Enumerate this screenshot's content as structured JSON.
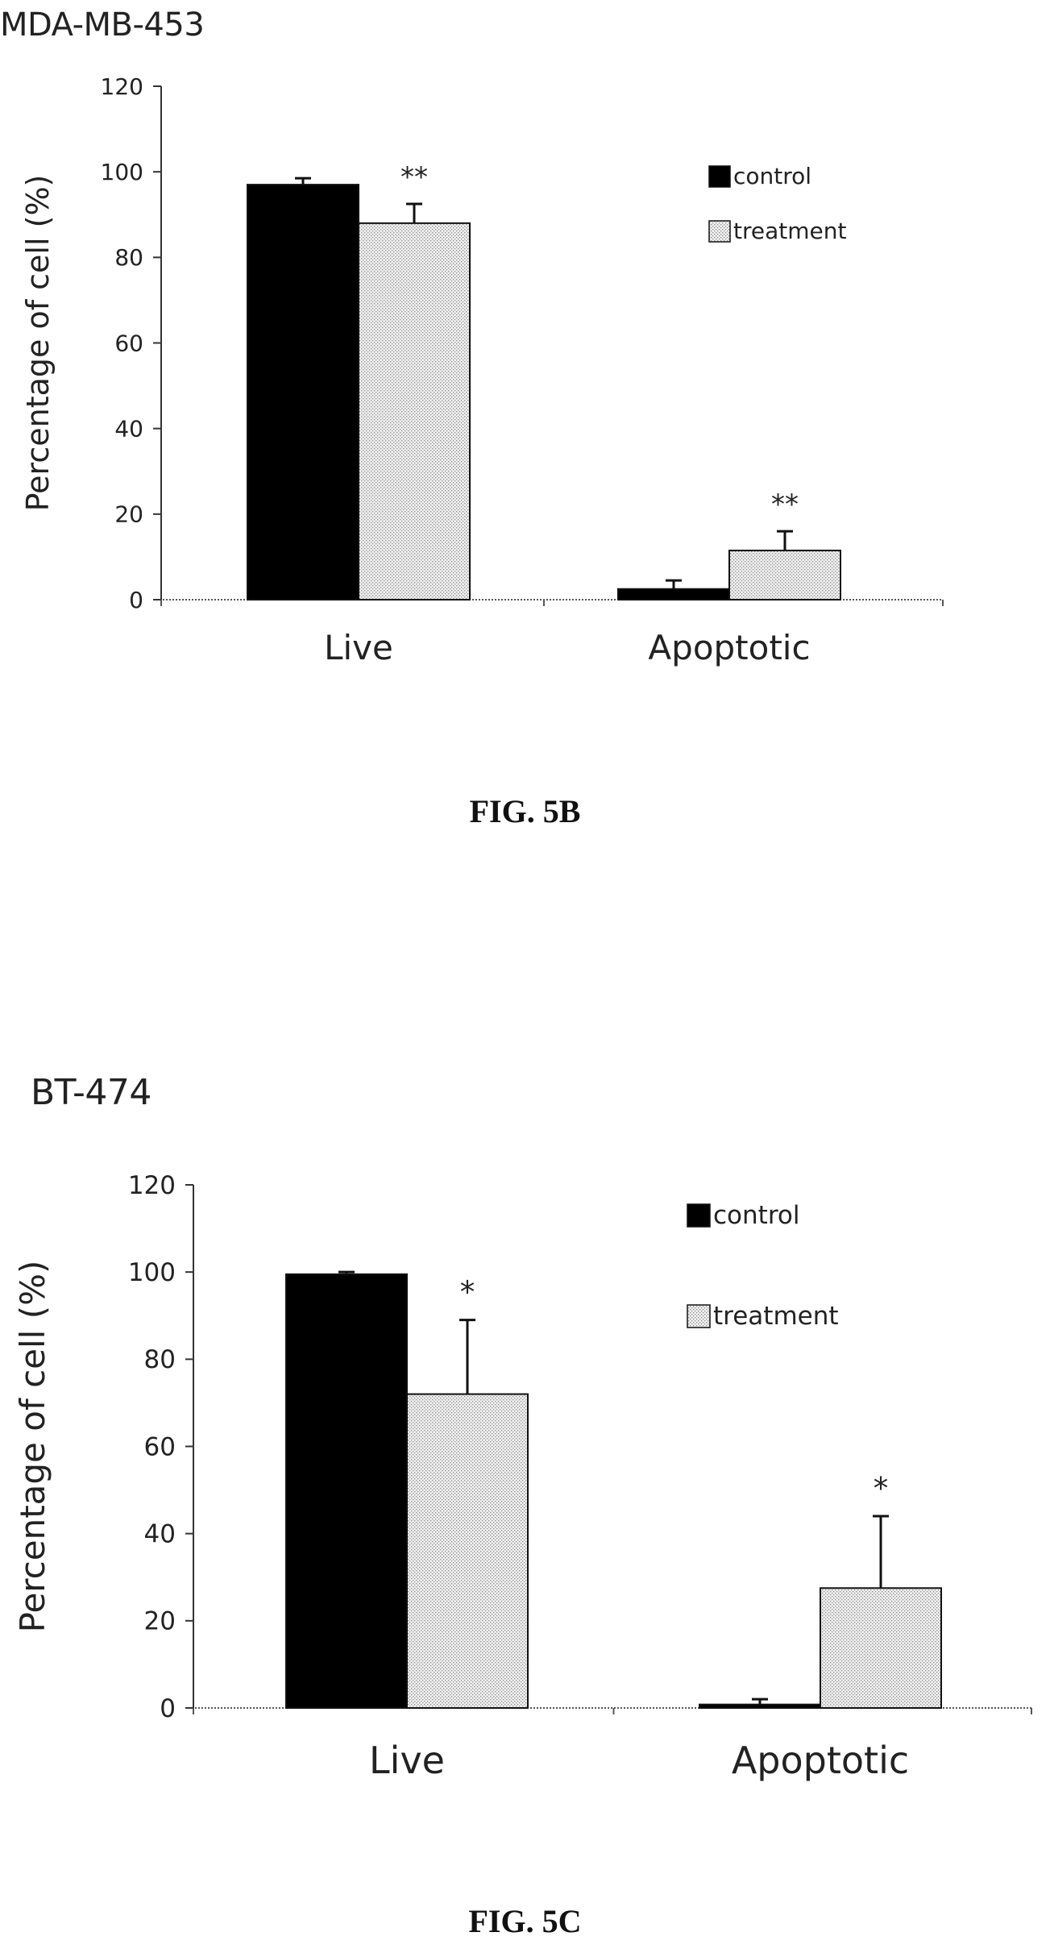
{
  "figures": [
    {
      "id": "fig-5b",
      "cell_line": "MDA-MB-453",
      "caption": "FIG. 5B"
    },
    {
      "id": "fig-5c",
      "cell_line": "BT-474",
      "caption": "FIG. 5C"
    }
  ],
  "colors": {
    "control": "#000000",
    "treatment_pattern": "dotted-light-gray"
  },
  "chart_data": [
    {
      "type": "bar",
      "categories": [
        "Live",
        "Apoptotic"
      ],
      "series": [
        {
          "name": "control",
          "values": [
            97,
            2.5
          ],
          "errors": [
            1.5,
            2
          ]
        },
        {
          "name": "treatment",
          "values": [
            88,
            11.5
          ],
          "errors": [
            4.5,
            4.5
          ]
        }
      ],
      "significance": [
        [
          "",
          "**"
        ],
        [
          "",
          "**"
        ]
      ],
      "title": "MDA-MB-453",
      "xlabel": "",
      "ylabel": "Percentage of cell (%)",
      "ylim": [
        0,
        120
      ],
      "yticks": [
        0,
        20,
        40,
        60,
        80,
        100,
        120
      ],
      "grid": false,
      "legend": "top-right"
    },
    {
      "type": "bar",
      "categories": [
        "Live",
        "Apoptotic"
      ],
      "series": [
        {
          "name": "control",
          "values": [
            99.5,
            0.8
          ],
          "errors": [
            0.5,
            1.2
          ]
        },
        {
          "name": "treatment",
          "values": [
            72,
            27.5
          ],
          "errors": [
            17,
            16.5
          ]
        }
      ],
      "significance": [
        [
          "",
          "*"
        ],
        [
          "",
          "*"
        ]
      ],
      "title": "BT-474",
      "xlabel": "",
      "ylabel": "Percentage of cell (%)",
      "ylim": [
        0,
        120
      ],
      "yticks": [
        0,
        20,
        40,
        60,
        80,
        100,
        120
      ],
      "grid": false,
      "legend": "top-right"
    }
  ]
}
